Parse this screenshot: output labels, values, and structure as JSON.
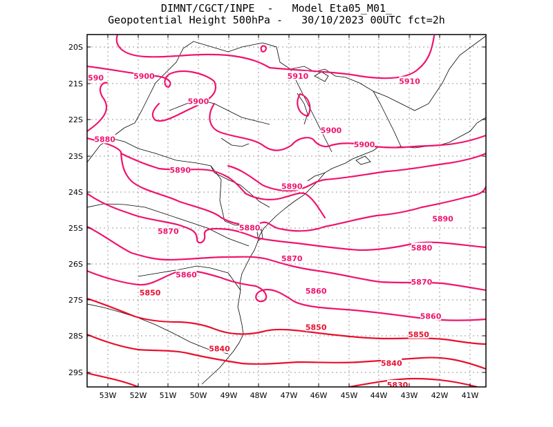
{
  "title": {
    "line1": "DIMNT/CGCT/INPE  -   Model Eta05_M01_",
    "line2": "Geopotential Height 500hPa -   30/10/2023 00UTC fct=2h"
  },
  "colors": {
    "contour_pink": "#f0136e",
    "contour_red": "#e8102e",
    "coast": "#000000",
    "grid": "#999999"
  },
  "axes": {
    "lat_labels": [
      "20S",
      "21S",
      "22S",
      "23S",
      "24S",
      "25S",
      "26S",
      "27S",
      "28S",
      "29S"
    ],
    "lon_labels": [
      "53W",
      "52W",
      "51W",
      "50W",
      "49W",
      "48W",
      "47W",
      "46W",
      "45W",
      "44W",
      "43W",
      "42W",
      "41W"
    ]
  },
  "contour_labels": [
    {
      "text": "5910",
      "lon": -46.7,
      "lat": -20.8
    },
    {
      "text": "5910",
      "lon": -43.0,
      "lat": -20.95
    },
    {
      "text": "5900",
      "lon": -51.8,
      "lat": -20.8
    },
    {
      "text": "5900",
      "lon": -50.0,
      "lat": -21.5
    },
    {
      "text": "5900",
      "lon": -45.6,
      "lat": -22.3
    },
    {
      "text": "5900",
      "lon": -44.5,
      "lat": -22.7
    },
    {
      "text": "5880",
      "lon": -53.1,
      "lat": -22.55
    },
    {
      "text": "5890",
      "lon": -50.6,
      "lat": -23.4
    },
    {
      "text": "5890",
      "lon": -46.9,
      "lat": -23.85
    },
    {
      "text": "5890",
      "lon": -41.9,
      "lat": -24.75
    },
    {
      "text": "5870",
      "lon": -51.0,
      "lat": -25.1
    },
    {
      "text": "5880",
      "lon": -48.3,
      "lat": -25.0
    },
    {
      "text": "5880",
      "lon": -42.6,
      "lat": -25.55
    },
    {
      "text": "5870",
      "lon": -46.9,
      "lat": -25.85
    },
    {
      "text": "5870",
      "lon": -42.6,
      "lat": -26.5
    },
    {
      "text": "5860",
      "lon": -50.4,
      "lat": -26.3
    },
    {
      "text": "5860",
      "lon": -46.1,
      "lat": -26.75
    },
    {
      "text": "5860",
      "lon": -42.3,
      "lat": -27.45
    },
    {
      "text": "5850",
      "lon": -51.6,
      "lat": -26.8
    },
    {
      "text": "5850",
      "lon": -46.1,
      "lat": -27.75
    },
    {
      "text": "5850",
      "lon": -42.7,
      "lat": -27.95
    },
    {
      "text": "5840",
      "lon": -49.3,
      "lat": -28.35
    },
    {
      "text": "5840",
      "lon": -43.6,
      "lat": -28.75
    },
    {
      "text": "5830",
      "lon": -43.4,
      "lat": -29.35
    },
    {
      "text": "590",
      "lon": -53.4,
      "lat": -20.85
    }
  ]
}
